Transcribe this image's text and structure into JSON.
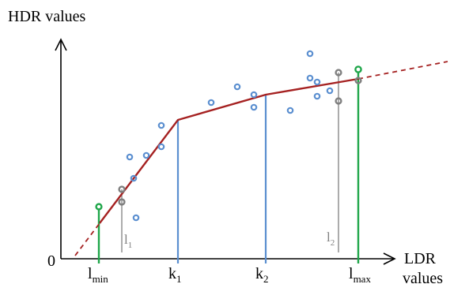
{
  "labels": {
    "y_axis": "HDR values",
    "x_axis_line1": "LDR",
    "x_axis_line2": "values",
    "origin": "0",
    "lmin_base": "l",
    "lmin_sub": "min",
    "k1_base": "k",
    "k1_sub": "1",
    "k2_base": "k",
    "k2_sub": "2",
    "lmax_base": "l",
    "lmax_sub": "max",
    "l1_base": "l",
    "l1_sub": "1",
    "l2_base": "l",
    "l2_sub": "2"
  },
  "colors": {
    "curve": "#a52121",
    "blue": "#5b8fd0",
    "green": "#1fa64a",
    "gray": "#7f7f7f",
    "axis": "#000000"
  }
}
